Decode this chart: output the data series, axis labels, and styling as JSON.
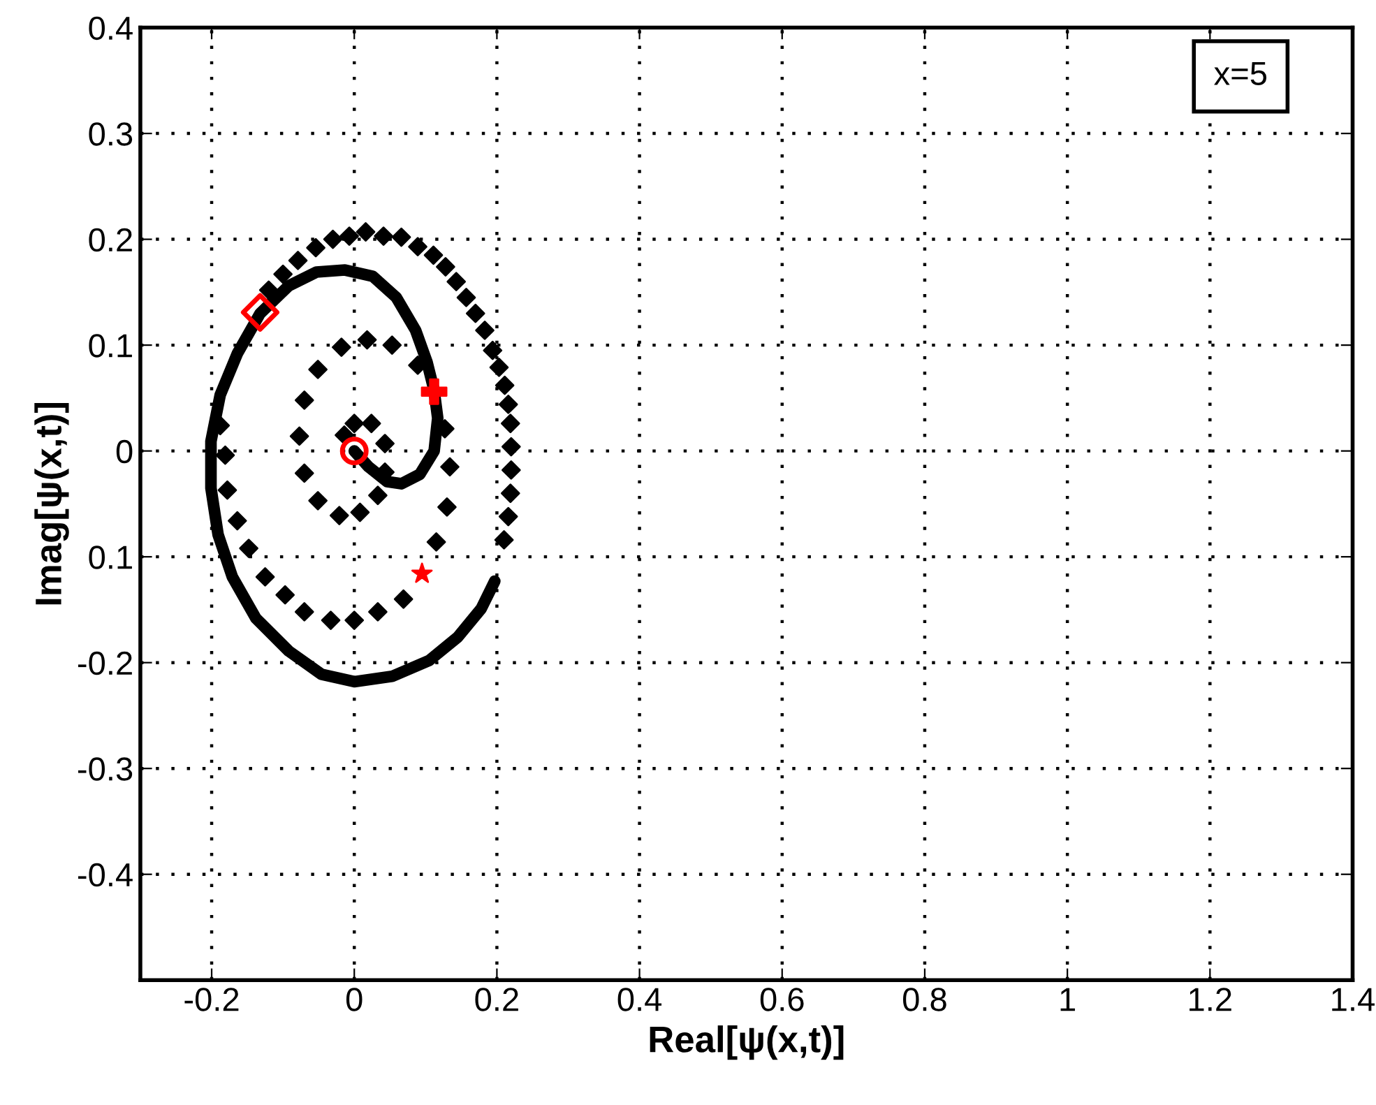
{
  "chart_data": {
    "type": "scatter",
    "xlabel": "Real[ψ(x,t)]",
    "ylabel": "Imag[ψ(x,t)]",
    "xlim": [
      -0.3,
      1.4
    ],
    "ylim": [
      -0.5,
      0.4
    ],
    "xticks": [
      -0.2,
      0,
      0.2,
      0.4,
      0.6,
      0.8,
      1,
      1.2,
      1.4
    ],
    "yticks": [
      -0.4,
      -0.3,
      -0.2,
      {
        "value": -0.1,
        "label": "0.1"
      },
      0,
      0.1,
      0.2,
      0.3,
      0.4
    ],
    "grid": true,
    "annotations": [
      "x=5"
    ],
    "series": [
      {
        "type": "line",
        "color": "#000000",
        "x": [
          0,
          0.02,
          0.046,
          0.066,
          0.092,
          0.112,
          0.117,
          0.112,
          0.102,
          0.086,
          0.059,
          0.026,
          -0.013,
          -0.053,
          -0.092,
          -0.132,
          -0.164,
          -0.188,
          -0.201,
          -0.201,
          -0.191,
          -0.171,
          -0.138,
          -0.092,
          -0.046,
          0,
          0.053,
          0.105,
          0.145,
          0.178,
          0.197
        ],
        "values": [
          0,
          -0.015,
          -0.029,
          -0.031,
          -0.022,
          0,
          0.031,
          0.057,
          0.084,
          0.114,
          0.145,
          0.165,
          0.171,
          0.169,
          0.156,
          0.13,
          0.092,
          0.053,
          0.009,
          -0.035,
          -0.079,
          -0.119,
          -0.158,
          -0.189,
          -0.211,
          -0.218,
          -0.213,
          -0.198,
          -0.176,
          -0.149,
          -0.123
        ]
      },
      {
        "color": "#000000",
        "marker": "diamond",
        "x": [
          0.21,
          0.216,
          0.219,
          0.22,
          0.22,
          0.219,
          0.216,
          0.211,
          0.203,
          0.194,
          0.183,
          0.17,
          0.157,
          0.143,
          0.128,
          0.111,
          0.089,
          0.066,
          0.041,
          0.016,
          -0.007,
          -0.03,
          -0.054,
          -0.079,
          -0.1,
          -0.12,
          0.018,
          0.053,
          -0.018,
          -0.051,
          0.089,
          -0.07,
          0.127,
          -0.077,
          -0.07,
          0.134,
          -0.051,
          -0.021,
          0.008,
          0.033,
          0.043,
          0.043,
          0.024,
          0,
          -0.014,
          0.13,
          0.115,
          0.069,
          0.033,
          0,
          -0.033,
          -0.07,
          -0.097,
          -0.125,
          -0.148,
          -0.164,
          -0.178,
          -0.181,
          -0.188
        ],
        "values": [
          -0.084,
          -0.062,
          -0.04,
          -0.018,
          0.004,
          0.026,
          0.044,
          0.062,
          0.079,
          0.095,
          0.114,
          0.13,
          0.145,
          0.16,
          0.174,
          0.185,
          0.193,
          0.202,
          0.203,
          0.207,
          0.203,
          0.2,
          0.192,
          0.18,
          0.167,
          0.152,
          0.105,
          0.1,
          0.098,
          0.077,
          0.081,
          0.048,
          0.021,
          0.014,
          -0.021,
          -0.015,
          -0.047,
          -0.061,
          -0.058,
          -0.042,
          -0.02,
          0.007,
          0.026,
          0.026,
          0.015,
          -0.053,
          -0.086,
          -0.14,
          -0.152,
          -0.16,
          -0.16,
          -0.152,
          -0.136,
          -0.119,
          -0.092,
          -0.066,
          -0.037,
          -0.004,
          0.024
        ]
      },
      {
        "color": "#ff0000",
        "marker": "diamond",
        "x": [
          -0.132
        ],
        "values": [
          0.131
        ]
      },
      {
        "color": "#ff0000",
        "marker": "circle",
        "x": [
          0
        ],
        "values": [
          0
        ]
      },
      {
        "color": "#ff0000",
        "marker": "cross",
        "x": [
          0.112
        ],
        "values": [
          0.056
        ]
      },
      {
        "color": "#ff0000",
        "marker": "star",
        "x": [
          0.095
        ],
        "values": [
          -0.116
        ]
      }
    ]
  }
}
